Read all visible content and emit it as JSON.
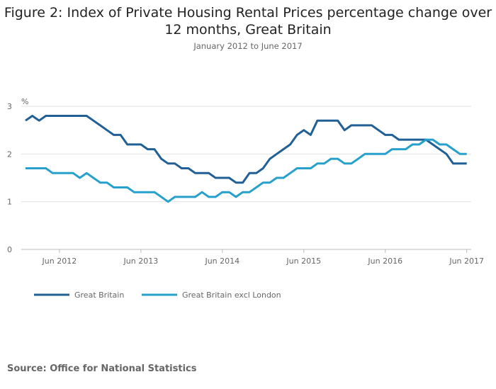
{
  "chart_data": {
    "type": "line",
    "title": "Figure 2: Index of Private Housing Rental Prices percentage change over 12 months, Great Britain",
    "subtitle": "January 2012 to June 2017",
    "ylabel": "%",
    "xlabel": "",
    "ylim": [
      0,
      3
    ],
    "yticks": [
      "0",
      "1",
      "2",
      "3"
    ],
    "xticks": [
      "Jun 2012",
      "Jun 2013",
      "Jun 2014",
      "Jun 2015",
      "Jun 2016",
      "Jun 2017"
    ],
    "xtick_month_index": [
      5,
      17,
      29,
      41,
      53,
      65
    ],
    "x_start": "Jan 2012",
    "x_end": "Jun 2017",
    "grid": true,
    "legend_position": "bottom-left",
    "series": [
      {
        "name": "Great Britain",
        "color": "#206095",
        "values": [
          2.7,
          2.8,
          2.7,
          2.8,
          2.8,
          2.8,
          2.8,
          2.8,
          2.8,
          2.8,
          2.7,
          2.6,
          2.5,
          2.4,
          2.4,
          2.2,
          2.2,
          2.2,
          2.1,
          2.1,
          1.9,
          1.8,
          1.8,
          1.7,
          1.7,
          1.6,
          1.6,
          1.6,
          1.5,
          1.5,
          1.5,
          1.4,
          1.4,
          1.6,
          1.6,
          1.7,
          1.9,
          2.0,
          2.1,
          2.2,
          2.4,
          2.5,
          2.4,
          2.7,
          2.7,
          2.7,
          2.7,
          2.5,
          2.6,
          2.6,
          2.6,
          2.6,
          2.5,
          2.4,
          2.4,
          2.3,
          2.3,
          2.3,
          2.3,
          2.3,
          2.2,
          2.1,
          2.0,
          1.8,
          1.8,
          1.8
        ]
      },
      {
        "name": "Great Britain excl London",
        "color": "#27a0cc",
        "values": [
          1.7,
          1.7,
          1.7,
          1.7,
          1.6,
          1.6,
          1.6,
          1.6,
          1.5,
          1.6,
          1.5,
          1.4,
          1.4,
          1.3,
          1.3,
          1.3,
          1.2,
          1.2,
          1.2,
          1.2,
          1.1,
          1.0,
          1.1,
          1.1,
          1.1,
          1.1,
          1.2,
          1.1,
          1.1,
          1.2,
          1.2,
          1.1,
          1.2,
          1.2,
          1.3,
          1.4,
          1.4,
          1.5,
          1.5,
          1.6,
          1.7,
          1.7,
          1.7,
          1.8,
          1.8,
          1.9,
          1.9,
          1.8,
          1.8,
          1.9,
          2.0,
          2.0,
          2.0,
          2.0,
          2.1,
          2.1,
          2.1,
          2.2,
          2.2,
          2.3,
          2.3,
          2.2,
          2.2,
          2.1,
          2.0,
          2.0
        ]
      }
    ]
  },
  "source": "Source: Office for National Statistics"
}
